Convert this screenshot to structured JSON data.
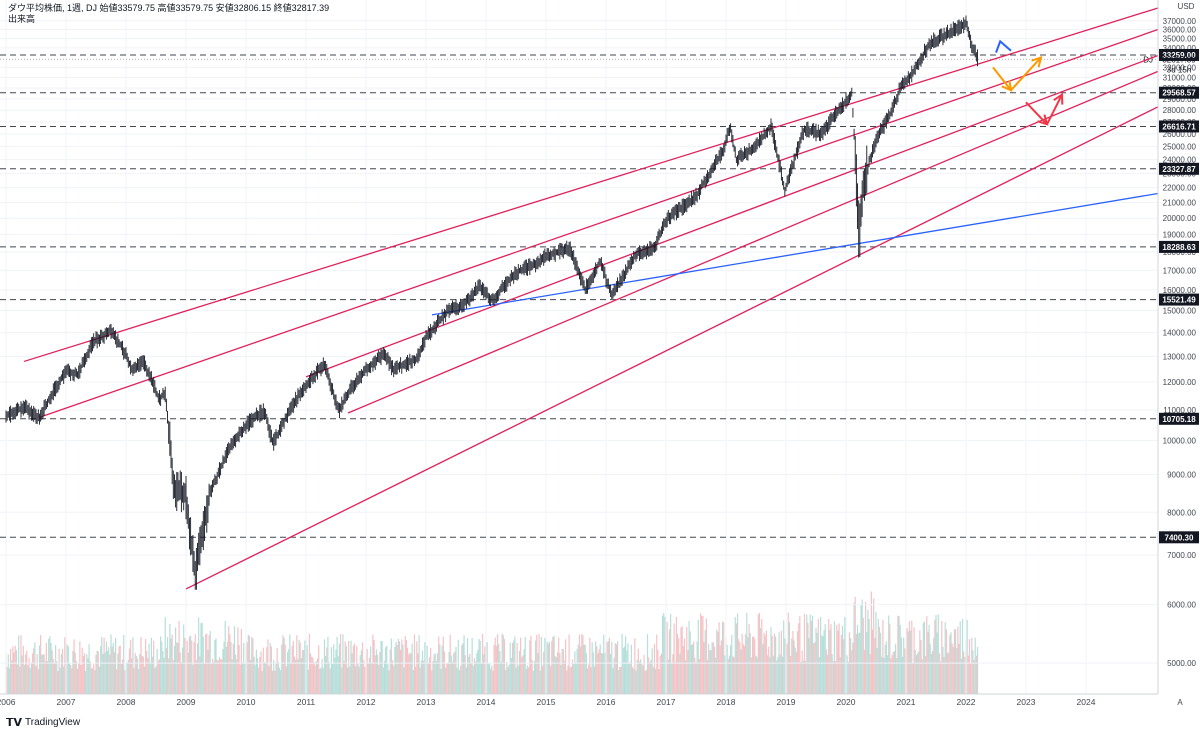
{
  "header": {
    "line1": "ダウ平均株価, 1週, DJ 始値33579.75 高値33579.75 安値32806.15 終値32817.39",
    "line2": "出来高"
  },
  "brand": {
    "logo": "𝗧𝗩",
    "name": "TradingView"
  },
  "axis": {
    "unit": "USD",
    "corner": "A"
  },
  "price_tag": {
    "symbol": "DJ",
    "value": "32817.39",
    "countdown": "3d 15h"
  },
  "colors": {
    "channel": "#e0215a",
    "trend": "#2962ff",
    "candle": "#131722",
    "dash": "#434651",
    "arrow_blue": "#2962ff",
    "arrow_orange": "#ff9800",
    "arrow_red": "#f23645",
    "vol_up": "#b7dfd9",
    "vol_down": "#f4c3c6"
  },
  "chart_data": {
    "type": "candlestick",
    "title": "ダウ平均株価, 1週, DJ",
    "timeframe": "1週",
    "ohlc_last": {
      "open": 33579.75,
      "high": 33579.75,
      "low": 32806.15,
      "close": 32817.39
    },
    "y_scale": "log",
    "ylim": [
      4700,
      38500
    ],
    "xlim": [
      2005.9,
      2025.2
    ],
    "y_ticks": [
      "5000.00",
      "6000.00",
      "7000.00",
      "8000.00",
      "9000.00",
      "10000.00",
      "11000.00",
      "12000.00",
      "13000.00",
      "14000.00",
      "15000.00",
      "16000.00",
      "17000.00",
      "18000.00",
      "19000.00",
      "20000.00",
      "21000.00",
      "22000.00",
      "23000.00",
      "24000.00",
      "25000.00",
      "26000.00",
      "27000.00",
      "28000.00",
      "29000.00",
      "30000.00",
      "31000.00",
      "32000.00",
      "34000.00",
      "35000.00",
      "36000.00",
      "37000.00"
    ],
    "x_ticks": [
      "2006",
      "2007",
      "2008",
      "2009",
      "2010",
      "2011",
      "2012",
      "2013",
      "2014",
      "2015",
      "2016",
      "2017",
      "2018",
      "2019",
      "2020",
      "2021",
      "2022",
      "2023",
      "2024"
    ],
    "horizontal_levels": [
      {
        "label": "33259.00",
        "value": 33259.0
      },
      {
        "label": "29568.57",
        "value": 29568.57
      },
      {
        "label": "26616.71",
        "value": 26616.71
      },
      {
        "label": "23327.87",
        "value": 23327.87
      },
      {
        "label": "18288.63",
        "value": 18288.63
      },
      {
        "label": "15521.49",
        "value": 15521.49
      },
      {
        "label": "10705.18",
        "value": 10705.18
      },
      {
        "label": "7400.30",
        "value": 7400.3
      }
    ],
    "price_path": [
      [
        2006.0,
        10800
      ],
      [
        2006.3,
        11100
      ],
      [
        2006.55,
        10750
      ],
      [
        2006.8,
        11700
      ],
      [
        2007.0,
        12400
      ],
      [
        2007.2,
        12300
      ],
      [
        2007.45,
        13600
      ],
      [
        2007.75,
        14100
      ],
      [
        2007.95,
        13300
      ],
      [
        2008.1,
        12500
      ],
      [
        2008.3,
        12800
      ],
      [
        2008.55,
        11400
      ],
      [
        2008.65,
        11600
      ],
      [
        2008.8,
        8700
      ],
      [
        2009.0,
        8400
      ],
      [
        2009.15,
        6600
      ],
      [
        2009.4,
        8500
      ],
      [
        2009.7,
        9700
      ],
      [
        2010.0,
        10500
      ],
      [
        2010.3,
        11000
      ],
      [
        2010.45,
        9900
      ],
      [
        2010.75,
        11100
      ],
      [
        2011.0,
        11900
      ],
      [
        2011.3,
        12700
      ],
      [
        2011.55,
        11000
      ],
      [
        2011.75,
        11800
      ],
      [
        2012.0,
        12500
      ],
      [
        2012.3,
        13100
      ],
      [
        2012.45,
        12500
      ],
      [
        2012.85,
        12900
      ],
      [
        2013.0,
        13800
      ],
      [
        2013.4,
        15100
      ],
      [
        2013.6,
        15200
      ],
      [
        2013.9,
        16200
      ],
      [
        2014.1,
        15500
      ],
      [
        2014.5,
        16900
      ],
      [
        2014.8,
        17300
      ],
      [
        2015.0,
        17800
      ],
      [
        2015.4,
        18200
      ],
      [
        2015.65,
        16000
      ],
      [
        2015.9,
        17500
      ],
      [
        2016.1,
        15700
      ],
      [
        2016.5,
        17900
      ],
      [
        2016.8,
        18200
      ],
      [
        2017.0,
        19900
      ],
      [
        2017.5,
        21400
      ],
      [
        2017.95,
        24700
      ],
      [
        2018.07,
        26600
      ],
      [
        2018.17,
        24000
      ],
      [
        2018.5,
        25000
      ],
      [
        2018.75,
        26700
      ],
      [
        2018.98,
        21800
      ],
      [
        2019.3,
        26400
      ],
      [
        2019.6,
        26000
      ],
      [
        2019.8,
        27500
      ],
      [
        2020.1,
        29500
      ],
      [
        2020.22,
        18800
      ],
      [
        2020.3,
        22500
      ],
      [
        2020.5,
        25500
      ],
      [
        2020.75,
        27800
      ],
      [
        2020.9,
        29900
      ],
      [
        2021.1,
        31400
      ],
      [
        2021.4,
        34500
      ],
      [
        2021.6,
        35200
      ],
      [
        2021.85,
        36200
      ],
      [
        2022.0,
        36700
      ],
      [
        2022.1,
        34300
      ],
      [
        2022.2,
        32817
      ]
    ],
    "channel_lines": [
      {
        "from": [
          2006.3,
          12800
        ],
        "to": [
          2025.2,
          38500
        ]
      },
      {
        "from": [
          2006.55,
          10750
        ],
        "to": [
          2025.2,
          36000
        ]
      },
      {
        "from": [
          2011.0,
          12200
        ],
        "to": [
          2025.2,
          33200
        ]
      },
      {
        "from": [
          2011.7,
          10900
        ],
        "to": [
          2025.2,
          31600
        ]
      },
      {
        "from": [
          2009.0,
          6300
        ],
        "to": [
          2025.2,
          28300
        ]
      }
    ],
    "trend_lines": [
      {
        "from": [
          2013.1,
          14800
        ],
        "to": [
          2025.2,
          21600
        ]
      }
    ],
    "scenario_arrows": [
      {
        "color": "blue",
        "from": [
          2022.5,
          33500
        ],
        "peak": [
          2022.57,
          34700
        ],
        "to": [
          2022.75,
          33700
        ]
      },
      {
        "color": "orange",
        "from": [
          2022.45,
          32000
        ],
        "mid": [
          2022.75,
          29800
        ],
        "to": [
          2023.25,
          33000
        ]
      },
      {
        "color": "red",
        "from": [
          2023.0,
          28700
        ],
        "mid": [
          2023.35,
          26800
        ],
        "to": [
          2023.6,
          29400
        ]
      }
    ],
    "volume_note": "volume histogram in lower pane"
  }
}
